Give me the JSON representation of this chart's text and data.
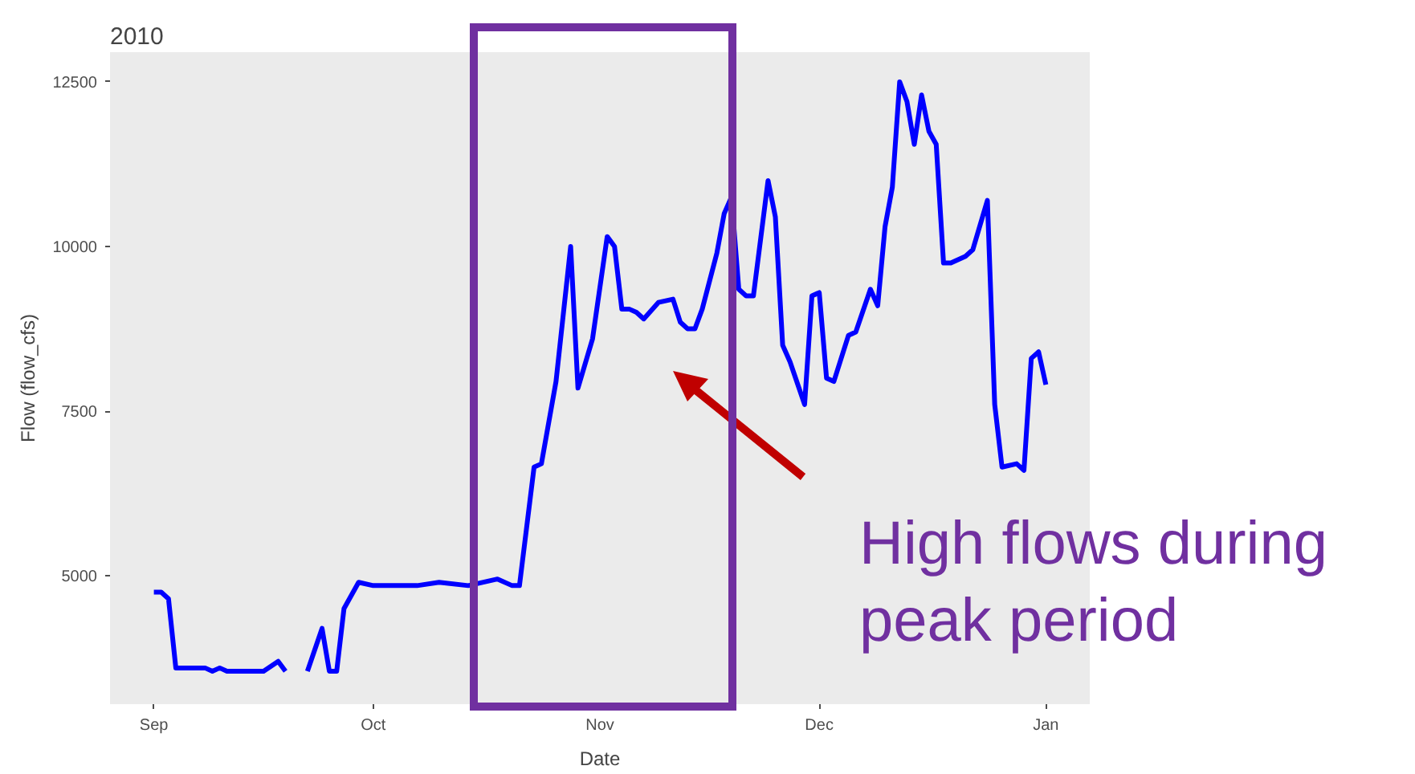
{
  "chart_data": {
    "type": "line",
    "title": "2010",
    "xlabel": "Date",
    "ylabel": "Flow (flow_cfs)",
    "x": [
      "2010-09-01",
      "2010-09-02",
      "2010-09-03",
      "2010-09-04",
      "2010-09-05",
      "2010-09-06",
      "2010-09-07",
      "2010-09-08",
      "2010-09-09",
      "2010-09-10",
      "2010-09-11",
      "2010-09-13",
      "2010-09-16",
      "2010-09-18",
      "2010-09-19",
      "2010-09-20",
      "2010-09-22",
      "2010-09-24",
      "2010-09-25",
      "2010-09-26",
      "2010-09-27",
      "2010-09-29",
      "2010-10-01",
      "2010-10-07",
      "2010-10-10",
      "2010-10-14",
      "2010-10-18",
      "2010-10-20",
      "2010-10-21",
      "2010-10-23",
      "2010-10-24",
      "2010-10-26",
      "2010-10-28",
      "2010-10-29",
      "2010-10-31",
      "2010-11-02",
      "2010-11-03",
      "2010-11-04",
      "2010-11-05",
      "2010-11-06",
      "2010-11-07",
      "2010-11-09",
      "2010-11-11",
      "2010-11-12",
      "2010-11-13",
      "2010-11-14",
      "2010-11-15",
      "2010-11-17",
      "2010-11-18",
      "2010-11-19",
      "2010-11-20",
      "2010-11-21",
      "2010-11-22",
      "2010-11-24",
      "2010-11-25",
      "2010-11-26",
      "2010-11-27",
      "2010-11-29",
      "2010-11-30",
      "2010-12-01",
      "2010-12-02",
      "2010-12-03",
      "2010-12-05",
      "2010-12-06",
      "2010-12-08",
      "2010-12-09",
      "2010-12-10",
      "2010-12-11",
      "2010-12-12",
      "2010-12-13",
      "2010-12-14",
      "2010-12-15",
      "2010-12-16",
      "2010-12-17",
      "2010-12-18",
      "2010-12-19",
      "2010-12-21",
      "2010-12-22",
      "2010-12-24",
      "2010-12-25",
      "2010-12-26",
      "2010-12-28",
      "2010-12-29",
      "2010-12-30",
      "2010-12-31",
      "2011-01-01"
    ],
    "series": [
      {
        "color": "#0000ff",
        "values": [
          4750,
          4750,
          4650,
          3600,
          3600,
          3600,
          3600,
          3600,
          3550,
          3600,
          3550,
          3550,
          3550,
          3700,
          3550,
          null,
          3550,
          4200,
          3550,
          3550,
          4500,
          4900,
          4850,
          4850,
          4900,
          4850,
          4950,
          4850,
          4850,
          6650,
          6700,
          7950,
          10000,
          7850,
          8600,
          10150,
          10000,
          9050,
          9050,
          9000,
          8900,
          9150,
          9200,
          8850,
          8750,
          8750,
          9050,
          9900,
          10500,
          10750,
          9350,
          9250,
          9250,
          11000,
          10450,
          8500,
          8250,
          7600,
          9250,
          9300,
          8000,
          7950,
          8650,
          8700,
          9350,
          9100,
          10300,
          10900,
          12500,
          12200,
          11550,
          12300,
          11750,
          11550,
          9750,
          9750,
          9850,
          9950,
          10700,
          7600,
          6650,
          6700,
          6600,
          8300,
          8400,
          7900
        ]
      }
    ],
    "xlim": [
      "2010-08-26",
      "2011-01-07"
    ],
    "xticks": [
      {
        "value": "2010-09-01",
        "label": "Sep"
      },
      {
        "value": "2010-10-01",
        "label": "Oct"
      },
      {
        "value": "2010-11-01",
        "label": "Nov"
      },
      {
        "value": "2010-12-01",
        "label": "Dec"
      },
      {
        "value": "2011-01-01",
        "label": "Jan"
      }
    ],
    "ylim": [
      3050,
      12950
    ],
    "yticks": [
      5000,
      7500,
      10000,
      12500
    ],
    "annotations": [
      "High flows during\npeak period"
    ],
    "grid": false,
    "marker": "none",
    "line_style": "solid"
  }
}
